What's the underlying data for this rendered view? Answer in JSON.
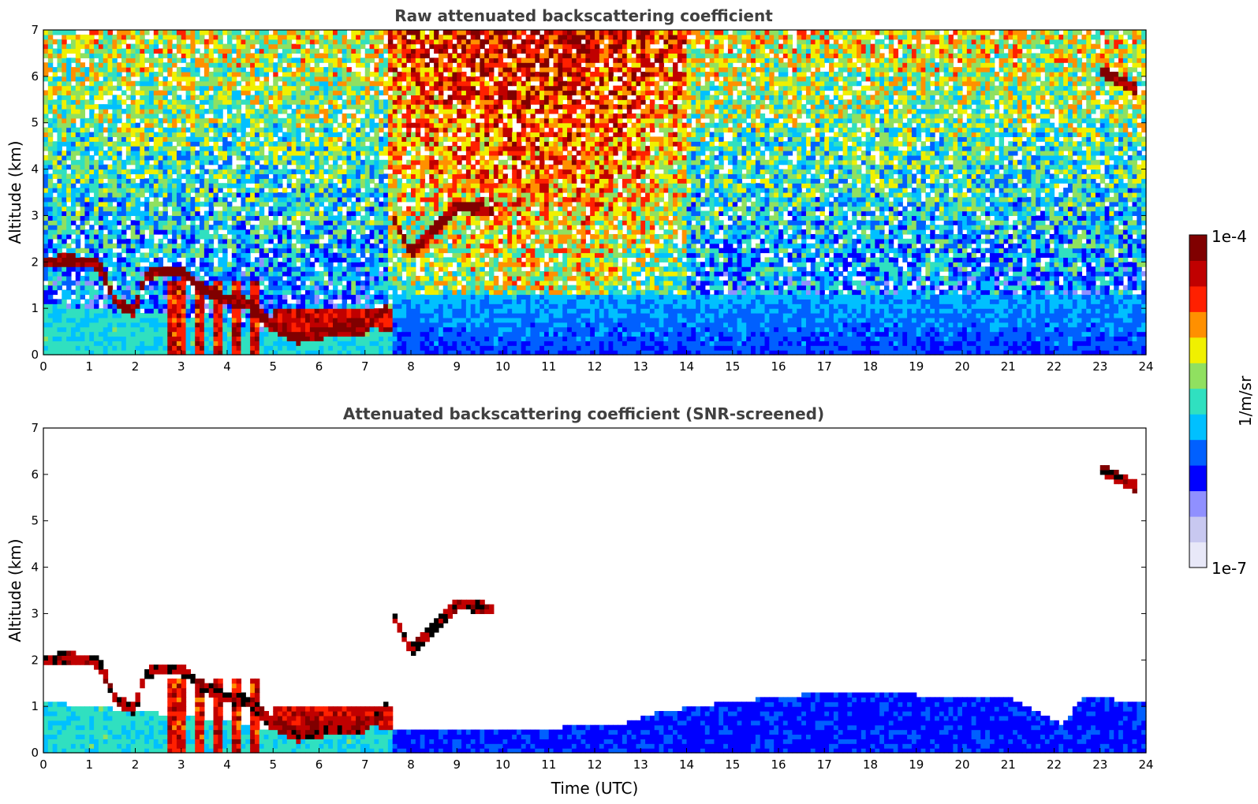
{
  "chart_data": [
    {
      "type": "heatmap",
      "title": "Raw attenuated backscattering coefficient",
      "xlabel": "",
      "ylabel": "Altitude (km)",
      "xlim": [
        0,
        24
      ],
      "ylim": [
        0,
        7
      ],
      "xticks": [
        "0",
        "1",
        "2",
        "3",
        "4",
        "5",
        "6",
        "7",
        "8",
        "9",
        "10",
        "11",
        "12",
        "13",
        "14",
        "15",
        "16",
        "17",
        "18",
        "19",
        "20",
        "21",
        "22",
        "23",
        "24"
      ],
      "yticks": [
        "0",
        "1",
        "2",
        "3",
        "4",
        "5",
        "6",
        "7"
      ],
      "screened": false,
      "features": {
        "boundary_layer_top_km": [
          {
            "t": 0.0,
            "h": 1.1
          },
          {
            "t": 1.0,
            "h": 1.0
          },
          {
            "t": 2.0,
            "h": 0.9
          },
          {
            "t": 3.0,
            "h": 0.8
          },
          {
            "t": 4.0,
            "h": 0.7
          },
          {
            "t": 5.0,
            "h": 0.5
          },
          {
            "t": 6.0,
            "h": 0.55
          },
          {
            "t": 7.0,
            "h": 0.6
          },
          {
            "t": 7.6,
            "h": 0.5
          },
          {
            "t": 10.0,
            "h": 0.45
          },
          {
            "t": 14.0,
            "h": 0.5
          },
          {
            "t": 18.0,
            "h": 0.6
          },
          {
            "t": 22.0,
            "h": 0.6
          },
          {
            "t": 23.9,
            "h": 0.55
          }
        ],
        "cloud_layers": [
          {
            "name": "low cloud",
            "points": [
              [
                0.0,
                2.0
              ],
              [
                0.5,
                2.05
              ],
              [
                1.0,
                2.0
              ],
              [
                1.2,
                1.95
              ],
              [
                1.6,
                1.1
              ],
              [
                2.0,
                0.95
              ],
              [
                2.2,
                1.7
              ],
              [
                2.5,
                1.8
              ],
              [
                3.0,
                1.8
              ],
              [
                3.5,
                1.4
              ],
              [
                4.0,
                1.2
              ],
              [
                4.5,
                1.1
              ],
              [
                5.0,
                0.6
              ],
              [
                5.5,
                0.35
              ],
              [
                6.0,
                0.45
              ],
              [
                6.5,
                0.55
              ],
              [
                7.0,
                0.55
              ],
              [
                7.5,
                1.05
              ]
            ]
          },
          {
            "name": "rising layer",
            "points": [
              [
                7.6,
                3.0
              ],
              [
                7.8,
                2.6
              ],
              [
                8.0,
                2.2
              ],
              [
                8.3,
                2.5
              ],
              [
                8.6,
                2.8
              ],
              [
                9.0,
                3.2
              ],
              [
                9.5,
                3.15
              ],
              [
                9.8,
                3.1
              ]
            ]
          },
          {
            "name": "high cloud",
            "points": [
              [
                23.0,
                6.1
              ],
              [
                23.4,
                5.95
              ],
              [
                23.8,
                5.7
              ]
            ]
          }
        ],
        "convective_columns_h": [
          2.8,
          3.0,
          3.4,
          3.8,
          4.2,
          4.6
        ],
        "aerosol_top_after_7_6h_km": 1.3
      }
    },
    {
      "type": "heatmap",
      "title": "Attenuated backscattering coefficient (SNR-screened)",
      "xlabel": "Time (UTC)",
      "ylabel": "Altitude (km)",
      "xlim": [
        0,
        24
      ],
      "ylim": [
        0,
        7
      ],
      "xticks": [
        "0",
        "1",
        "2",
        "3",
        "4",
        "5",
        "6",
        "7",
        "8",
        "9",
        "10",
        "11",
        "12",
        "13",
        "14",
        "15",
        "16",
        "17",
        "18",
        "19",
        "20",
        "21",
        "22",
        "23",
        "24"
      ],
      "yticks": [
        "0",
        "1",
        "2",
        "3",
        "4",
        "5",
        "6",
        "7"
      ],
      "screened": true,
      "features": {
        "signal_top_km": [
          {
            "t": 7.6,
            "h": 0.55
          },
          {
            "t": 10.0,
            "h": 0.5
          },
          {
            "t": 12.5,
            "h": 0.6
          },
          {
            "t": 13.5,
            "h": 0.9
          },
          {
            "t": 15.0,
            "h": 1.1
          },
          {
            "t": 17.0,
            "h": 1.3
          },
          {
            "t": 19.0,
            "h": 1.25
          },
          {
            "t": 21.0,
            "h": 1.2
          },
          {
            "t": 22.2,
            "h": 0.6
          },
          {
            "t": 22.6,
            "h": 1.2
          },
          {
            "t": 23.9,
            "h": 1.1
          }
        ]
      }
    }
  ],
  "colorbar": {
    "label": "1/m/sr",
    "max_label": "1e-4",
    "min_label": "1e-7",
    "scale": "log",
    "colormap": "jet",
    "colors": [
      "#e8e8f8",
      "#c8c8f0",
      "#9090ff",
      "#0000ff",
      "#0060ff",
      "#00c0ff",
      "#30e0c0",
      "#90e060",
      "#f0f000",
      "#ff9000",
      "#ff2000",
      "#c00000",
      "#800000"
    ]
  }
}
